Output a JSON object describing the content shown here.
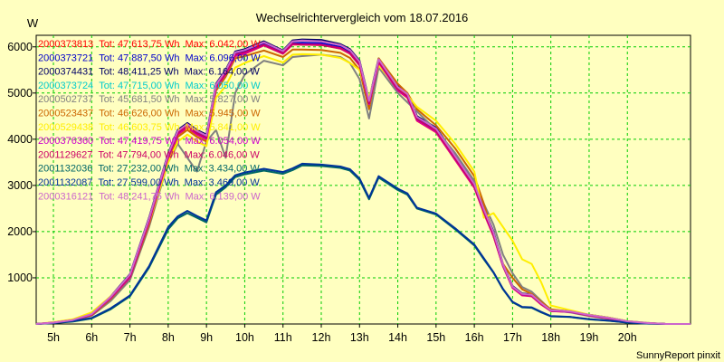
{
  "chart_data": {
    "type": "line",
    "title": "Wechselrichtervergleich vom 18.07.2016",
    "ylabel": "W",
    "xlabel": "",
    "credit": "SunnyReport pinxit",
    "grid": true,
    "xlim": [
      4.55,
      21.65
    ],
    "ylim": [
      0,
      6250
    ],
    "x_ticks": [
      5,
      6,
      7,
      8,
      9,
      10,
      11,
      12,
      13,
      14,
      15,
      16,
      17,
      18,
      19,
      20
    ],
    "x_tick_labels": [
      "5h",
      "6h",
      "7h",
      "8h",
      "9h",
      "10h",
      "11h",
      "12h",
      "13h",
      "14h",
      "15h",
      "16h",
      "17h",
      "18h",
      "19h",
      "20h"
    ],
    "y_ticks": [
      1000,
      2000,
      3000,
      4000,
      5000,
      6000
    ],
    "x": [
      4.55,
      5.0,
      5.5,
      6.0,
      6.5,
      7.0,
      7.5,
      8.0,
      8.25,
      8.5,
      8.75,
      9.0,
      9.25,
      9.5,
      9.75,
      10.0,
      10.5,
      11.0,
      11.25,
      11.5,
      12.0,
      12.5,
      12.75,
      13.0,
      13.25,
      13.5,
      14.0,
      14.25,
      14.5,
      15.0,
      15.5,
      16.0,
      16.25,
      16.5,
      16.75,
      17.0,
      17.25,
      17.5,
      17.75,
      18.0,
      18.5,
      19.0,
      19.5,
      20.0,
      20.5,
      21.0,
      21.65
    ],
    "series": [
      {
        "name": "2000373813",
        "total": "Tot: 47.613,75 Wh",
        "max": "Max: 6.042,00 W",
        "color": "#ff0000",
        "values": [
          0,
          30,
          80,
          200,
          560,
          1000,
          2200,
          3600,
          4100,
          4250,
          4100,
          4000,
          5100,
          5400,
          5800,
          5850,
          6030,
          5850,
          6050,
          6050,
          6040,
          5960,
          5850,
          5600,
          4750,
          5650,
          5050,
          4900,
          4400,
          4150,
          3550,
          2950,
          2400,
          1900,
          1250,
          780,
          620,
          600,
          420,
          280,
          260,
          180,
          120,
          50,
          20,
          0,
          0
        ]
      },
      {
        "name": "2000373721",
        "total": "Tot: 47.887,50 Wh",
        "max": "Max: 6.096,00 W",
        "color": "#0000cc",
        "values": [
          0,
          30,
          80,
          210,
          580,
          1050,
          2250,
          3650,
          4150,
          4300,
          4150,
          4050,
          5150,
          5450,
          5850,
          5900,
          6070,
          5880,
          6080,
          6090,
          6080,
          6000,
          5880,
          5620,
          4800,
          5700,
          5100,
          4950,
          4450,
          4200,
          3600,
          3000,
          2450,
          1950,
          1280,
          800,
          640,
          620,
          440,
          290,
          270,
          190,
          130,
          55,
          20,
          0,
          0
        ]
      },
      {
        "name": "2000374431",
        "total": "Tot: 48.411,25 Wh",
        "max": "Max: 6.164,00 W",
        "color": "#000066",
        "values": [
          0,
          30,
          90,
          220,
          600,
          1080,
          2300,
          3700,
          4200,
          4350,
          4200,
          4100,
          5200,
          5500,
          5900,
          5950,
          6120,
          5920,
          6140,
          6160,
          6150,
          6060,
          5950,
          5700,
          4850,
          5750,
          5150,
          5000,
          4500,
          4250,
          3650,
          3050,
          2500,
          2000,
          1300,
          820,
          660,
          640,
          460,
          300,
          280,
          200,
          140,
          60,
          25,
          0,
          0
        ]
      },
      {
        "name": "2000373724",
        "total": "Tot: 47.715,00 Wh",
        "max": "Max: 6.050,00 W",
        "color": "#00cccc",
        "values": [
          0,
          30,
          80,
          200,
          570,
          1020,
          2200,
          3620,
          4120,
          4280,
          4120,
          4020,
          5120,
          5420,
          5820,
          5870,
          6040,
          5860,
          6060,
          6050,
          6045,
          5970,
          5860,
          5610,
          4770,
          5670,
          5070,
          4920,
          4420,
          4170,
          3570,
          2970,
          2420,
          1920,
          1260,
          790,
          630,
          610,
          430,
          285,
          265,
          185,
          125,
          52,
          20,
          0,
          0
        ]
      },
      {
        "name": "2000502737",
        "total": "Tot: 45.681,50 Wh",
        "max": "Max: 5.827,00 W",
        "color": "#808080",
        "values": [
          0,
          30,
          70,
          180,
          500,
          950,
          2100,
          3500,
          3900,
          3600,
          3300,
          3950,
          4200,
          3600,
          5000,
          5400,
          5700,
          5600,
          5780,
          5800,
          5830,
          5780,
          5650,
          5300,
          4450,
          5550,
          5000,
          4800,
          4600,
          4200,
          3700,
          3100,
          2600,
          2150,
          1500,
          1100,
          800,
          700,
          500,
          300,
          250,
          170,
          110,
          45,
          15,
          0,
          0
        ]
      },
      {
        "name": "2000523437",
        "total": "Tot: 46.626,00 Wh",
        "max": "Max: 5.945,00 W",
        "color": "#cc6600",
        "values": [
          0,
          30,
          80,
          190,
          540,
          1000,
          2150,
          3550,
          4050,
          4200,
          4050,
          3950,
          5050,
          5350,
          5750,
          5800,
          5920,
          5780,
          5940,
          5940,
          5930,
          5870,
          5760,
          5500,
          4650,
          5750,
          5200,
          5000,
          4650,
          4300,
          3800,
          3200,
          2600,
          1900,
          1300,
          1000,
          750,
          650,
          480,
          320,
          270,
          180,
          120,
          50,
          18,
          0,
          0
        ]
      },
      {
        "name": "2000529438",
        "total": "Tot: 46.603,75 Wh",
        "max": "Max: 5.841,00 W",
        "color": "#ffee00",
        "values": [
          0,
          40,
          100,
          250,
          600,
          1050,
          2200,
          3500,
          3950,
          4100,
          3950,
          3850,
          4900,
          5150,
          5550,
          5650,
          5800,
          5660,
          5830,
          5840,
          5830,
          5760,
          5650,
          5500,
          4900,
          5600,
          5100,
          4950,
          4700,
          4400,
          3900,
          3300,
          2300,
          2400,
          2100,
          1800,
          1400,
          1300,
          900,
          400,
          300,
          200,
          140,
          60,
          25,
          0,
          0
        ]
      },
      {
        "name": "2000376360",
        "total": "Tot: 47.419,75 Wh",
        "max": "Max: 6.054,00 W",
        "color": "#cc00cc",
        "values": [
          0,
          30,
          80,
          200,
          560,
          1010,
          2210,
          3610,
          4110,
          4270,
          4110,
          4010,
          5110,
          5410,
          5810,
          5860,
          6035,
          5855,
          6055,
          6054,
          6048,
          5965,
          5855,
          5605,
          4760,
          5660,
          5060,
          4910,
          4410,
          4160,
          3560,
          2960,
          2410,
          1910,
          1255,
          785,
          625,
          605,
          425,
          282,
          262,
          182,
          122,
          51,
          20,
          0,
          0
        ]
      },
      {
        "name": "2001129627",
        "total": "Tot: 47.794,00 Wh",
        "max": "Max: 6.046,00 W",
        "color": "#cc0066",
        "values": [
          0,
          30,
          80,
          205,
          575,
          1030,
          2230,
          3630,
          4130,
          4290,
          4130,
          4030,
          5130,
          5430,
          5830,
          5880,
          6045,
          5865,
          6065,
          6046,
          6040,
          5975,
          5865,
          5615,
          4780,
          5680,
          5080,
          4930,
          4430,
          4180,
          3580,
          2980,
          2430,
          1930,
          1270,
          800,
          640,
          615,
          435,
          288,
          268,
          188,
          128,
          53,
          20,
          0,
          0
        ]
      },
      {
        "name": "2001132036",
        "total": "Tot: 27.232,00 Wh",
        "max": "Max: 3.434,00 W",
        "color": "#006666",
        "values": [
          0,
          20,
          50,
          120,
          320,
          600,
          1220,
          2050,
          2290,
          2400,
          2300,
          2200,
          2800,
          2960,
          3180,
          3240,
          3320,
          3250,
          3330,
          3434,
          3420,
          3380,
          3320,
          3120,
          2700,
          3170,
          2900,
          2800,
          2500,
          2370,
          2050,
          1700,
          1400,
          1110,
          750,
          470,
          360,
          350,
          250,
          165,
          150,
          100,
          70,
          30,
          10,
          0,
          0
        ]
      },
      {
        "name": "2001132087",
        "total": "Tot: 27.599,00 Wh",
        "max": "Max: 3.469,00 W",
        "color": "#003399",
        "values": [
          0,
          20,
          60,
          130,
          340,
          620,
          1250,
          2100,
          2330,
          2450,
          2340,
          2240,
          2850,
          3000,
          3220,
          3280,
          3360,
          3290,
          3370,
          3469,
          3450,
          3410,
          3350,
          3150,
          2730,
          3200,
          2930,
          2830,
          2520,
          2390,
          2070,
          1720,
          1420,
          1120,
          760,
          480,
          370,
          360,
          260,
          170,
          155,
          105,
          75,
          32,
          10,
          0,
          0
        ]
      },
      {
        "name": "2000316121",
        "total": "Tot: 48.241,75 Wh",
        "max": "Max: 6.139,00 W",
        "color": "#cc66cc",
        "values": [
          0,
          30,
          85,
          215,
          590,
          1070,
          2280,
          3680,
          4180,
          4330,
          4180,
          4080,
          5180,
          5480,
          5880,
          5930,
          6100,
          5910,
          6120,
          6139,
          6120,
          6040,
          5930,
          5680,
          4830,
          5730,
          5130,
          4980,
          4480,
          4230,
          3630,
          3030,
          2480,
          1980,
          1290,
          810,
          650,
          630,
          450,
          295,
          275,
          195,
          135,
          58,
          22,
          0,
          0
        ]
      }
    ]
  }
}
